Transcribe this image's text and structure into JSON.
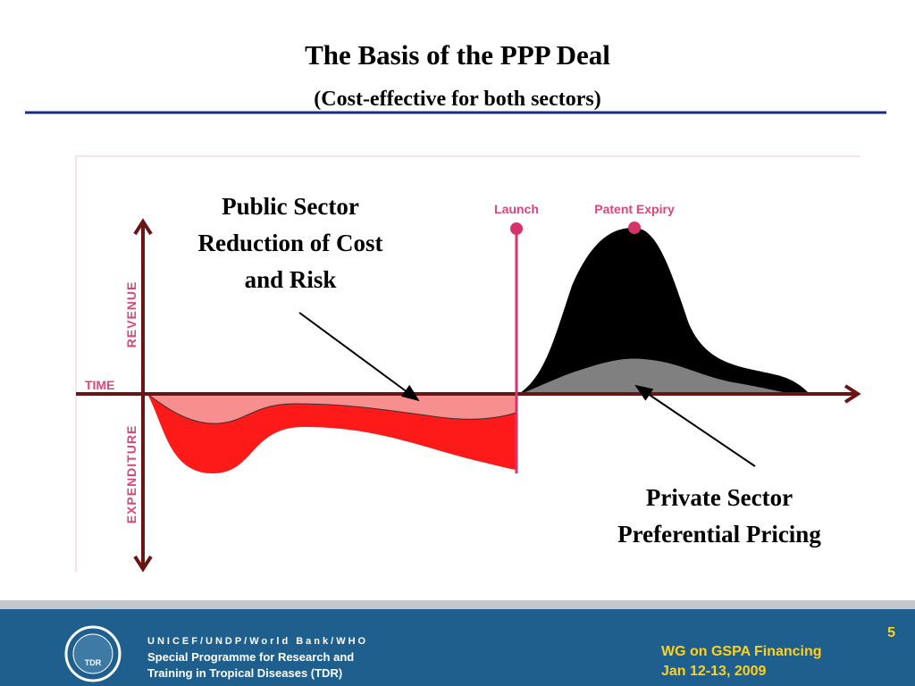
{
  "header": {
    "title": "The Basis of the PPP Deal",
    "subtitle": "(Cost-effective for both sectors)"
  },
  "diagram": {
    "axis_labels": {
      "revenue": "REVENUE",
      "time": "TIME",
      "expenditure": "EXPENDITURE"
    },
    "markers": {
      "launch": "Launch",
      "patent_expiry": "Patent Expiry"
    },
    "public_note": [
      "Public Sector",
      "Reduction of Cost",
      "and Risk"
    ],
    "private_note": [
      "Private Sector",
      "Preferential Pricing"
    ]
  },
  "footer": {
    "organizations": "UNICEF/UNDP/World Bank/WHO",
    "programme": [
      "Special Programme for Research and",
      "Training in Tropical Diseases (TDR)"
    ],
    "logo": "TDR",
    "page_number": "5",
    "event": "WG on GSPA Financing",
    "date": "Jan 12-13, 2009"
  }
}
